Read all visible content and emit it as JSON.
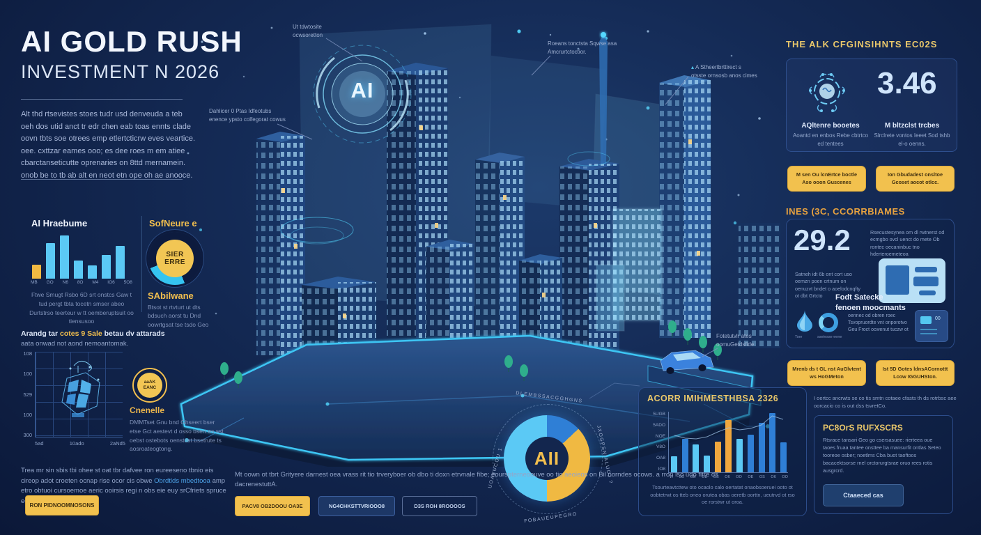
{
  "header": {
    "title": "AI GOLD RUSH",
    "subtitle": "INVESTMENT N 2026",
    "intro": "Alt thd rtsevistes stoes tudr usd denveuda a teb oeh dos utid anct tr edr chen eab toas ennts clade oovn tbts soe otrees emp etlertcticrw eves veartice. oee. cxttzar eames ooo; es dee roes m em atiee cbarctanseticutte oprenaries on 8ttd mernamein. onob be to tb ab alt en neot etn ope oh ae anooce."
  },
  "city": {
    "emblem": "AI"
  },
  "hardware": {
    "title": "AI Hraebume",
    "caption": "Ftwe Smugt Rsbo 6D srt onstcs Gaw t tud pergt tbta tocetn smser abeo Durtstrso teerteur w tt oemberuptsuit oo tiensusoo"
  },
  "software": {
    "title": "SofNeure e",
    "center1": "SIER",
    "center2": "ERRE",
    "label": "SAbilwane",
    "caption": "Btsot st rtvturt ut dts bdsuch aorst tu Dnd oowrtgsat tse tsdo Geo"
  },
  "network": {
    "h_pre": "Arandg tar ",
    "h_hl": "cotes 9 Sale",
    "h_post": " betau dv attarads",
    "h2": "aata onwad not aond nemoantomak.",
    "badge1": "aaAK",
    "badge2": "EANC",
    "label": "Cnenelle",
    "caption": "DMMTset Gnu bnd Ghseert bser etse Gct aestevt d osso bsert es sst oebst ostebots oenstost bsetrute ts aosroateogtong."
  },
  "callouts": [
    {
      "text": "Ut tdwtosite\nocwsoretton"
    },
    {
      "text": "Dahlicer 0 Ptas Idfeotubs\nenence ypsto colfegorat cowus"
    },
    {
      "text": "Roeans tonctsta Sqwse asa\nAmcrurtctoctior."
    },
    {
      "icon": "▴",
      "text": "A Stheertbrttlrect s\notsste ornsosb anos cimes"
    },
    {
      "text": "Fotetutvlr ates\noomuGetdsfide"
    }
  ],
  "allocation": {
    "center": "AII",
    "labels": [
      "DLEMBSSACGGHGNS",
      "JXOGPSNIALUOJ ?",
      "FOBAUEUPEGRO",
      "UOAVUCOU 1"
    ]
  },
  "acgr": {
    "title": "ACORR IMIHMESTHBSA 2326",
    "caption": "Tsourteavtcttew oto ocaolo calo oertatat onaobsoeruei ooto ot oobtetrwt os tteb oneo orutea obas oeretb oorttn, ueutrvd ot rso oe rorstwr ut oroa."
  },
  "bottom_left": {
    "text1": "Trea mr sin sbis tbi ohee st oat tbr dafvee ron eureeseno tbnio eis cireop adot croeten ocnap rise ocor cis obwe ",
    "link": "Obrdtlds mbedtooa",
    "text2": " amp etro obtuoi cursoemoe aeric ooirsis regi n obs eie euy srCfriets spruce edt",
    "button": "RON PIDNOOMNOSONS"
  },
  "bottom_center": {
    "text": "Mt oown ot tbrt Grityere darnest oea vrass rit tio trveryboer ob dbo ti doxn etrvnale fibe; eourspterneoouve oo tio aeoieos on Bil oorndes ocows. a rron lso udo fitre ds dacrenestuttA.",
    "btn1": "PACV8 OB2DOOU OA3E",
    "btn2": "NG4CHKSTTVRIOOO8",
    "btn3": "D3S ROH 8ROOOOS"
  },
  "right": {
    "heading1": "THE ALK CFGINSIHNTS EC02S",
    "stat1": {
      "value": "3.46",
      "col1_title": "AQltenre booetes",
      "col1_text": "Aoantd en enbos Rebe cbtrtco ed tentees",
      "col2_title": "M bltzclst trcbes",
      "col2_text": "Slrclrete vontos Ieeet Sod tshb el-o oenns."
    },
    "btn1": "M sen Ou lcnErtce boctle Aso ooon Guscenes",
    "btn2": "Ion Gbudadest onsltoe Gcoset aocot otlcc.",
    "heading2": "INES (3C, CCORRBIAMES",
    "stat2": {
      "value": "29.2",
      "para_right": "Rsecustesynea om dl rwtnerst od ecmgbo ovcl uenct do mete Ob rontec oecaninbuc tno hderteroemeteoa",
      "para_left": "Satneh idt 6b ont cort uso oemzn poen crtnum on oenuzvt bndet o aoelodcnqfty ot dbt Grtcto",
      "bold1": "Fodt Satecke",
      "bold2": "fenoen moocmants",
      "small_text": "oennec od obren roec Tsvopruordte vnt onporotvo Geu Froct ocwenut tuczw ot",
      "drop_label": "Tser",
      "ring_label": "ssetesse eene",
      "tv_value": "00"
    },
    "btn3": "Mrenb ds t GL nst AuGlvtent ws HoGMeton",
    "btn4": "Ist 5D Gotes ldnsACornottt Lcow IGGUHSton.",
    "note": "I oertcc ancrwts se co tis smtn cotaee cfasts th ds rotrbsc aee oorcacio co is out dss tsvretCo.",
    "panel": {
      "heading": "PC8OrS RUFXSCRS",
      "para": "Rtsrace tansari Geo go csersasuee: rierteea oue taoes fruaa tantee onsttee ba mansurfit ontlas Seteo tooreoe osber; noetlms Cba buot taoftoos bacacektsorse rnel orctorurgtsrae oruo rees rotis ausgrcrd.",
      "button": "Ctaaeced cas"
    }
  },
  "chart_data": [
    {
      "id": "hw_bars",
      "type": "bar",
      "title": "AI Hraebume",
      "categories": [
        "MB",
        "GO",
        "N6",
        "8O",
        "M4",
        "IO6",
        "5O8"
      ],
      "values": [
        33,
        82,
        100,
        42,
        30,
        55,
        75
      ],
      "colors": [
        "#f0b942",
        "#5bc9f5",
        "#5bc9f5",
        "#5bc9f5",
        "#5bc9f5",
        "#5bc9f5",
        "#5bc9f5"
      ],
      "ylim": [
        0,
        100
      ],
      "grid": false
    },
    {
      "id": "software_donut",
      "type": "pie",
      "title": "SofNeure e",
      "center_label": "SIER ERRE",
      "segments": [
        {
          "label": "base",
          "value": 44,
          "color": "#0d1b3e"
        },
        {
          "label": "highlight",
          "value": 25,
          "color": "#35c4f0"
        },
        {
          "label": "base2",
          "value": 31,
          "color": "#0d1b3e"
        }
      ]
    },
    {
      "id": "network_grid",
      "type": "scatter",
      "title": "Arandg tar cotes 9 Sale betau dv attarads",
      "y_ticks": [
        "108",
        "100",
        "529",
        "100",
        "300"
      ],
      "x_ticks": [
        "5ad",
        "10ado",
        "2aNd5"
      ],
      "grid": true
    },
    {
      "id": "allocation_donut",
      "type": "pie",
      "center_label": "AII",
      "segments": [
        {
          "label": "DLEMBSSACGGHGNS",
          "value": 13,
          "color": "#2f7fd6"
        },
        {
          "label": "JXOGPSNIALUOJ",
          "value": 37,
          "color": "#f0b942"
        },
        {
          "label": "FOBAUEUPEGRO UOAVUCOU",
          "value": 50,
          "color": "#5bc9f5"
        }
      ]
    },
    {
      "id": "acgr_bars",
      "type": "bar",
      "title": "ACORR IMIHMESTHBSA 2326",
      "categories": [
        "W",
        "5O",
        "OE",
        "OE",
        "OS",
        "O6",
        "OO",
        "OE",
        "OS",
        "O6",
        "OO"
      ],
      "values": [
        27,
        57,
        47,
        28,
        52,
        88,
        56,
        64,
        84,
        100,
        51
      ],
      "colors": [
        "#5bc9f5",
        "#2f7fd6",
        "#5bc9f5",
        "#5bc9f5",
        "#f0a73e",
        "#f0a73e",
        "#5bc9f5",
        "#2f7fd6",
        "#2f7fd6",
        "#2f7fd6",
        "#2f7fd6"
      ],
      "y_ticks": [
        "5UGB",
        "5ADO",
        "NOE",
        "V8O",
        "OA8",
        "IO8"
      ],
      "line_overlay": [
        62,
        58,
        57,
        60,
        68,
        75,
        72,
        74,
        80,
        95,
        90
      ],
      "ylim": [
        0,
        100
      ]
    }
  ]
}
